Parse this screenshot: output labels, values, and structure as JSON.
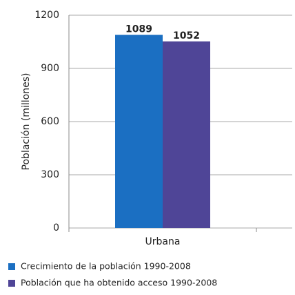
{
  "chart_data": {
    "type": "bar",
    "ylabel": "Población (millones)",
    "categories": [
      "Urbana"
    ],
    "series": [
      {
        "name": "Crecimiento de la población 1990-2008",
        "color": "#1b6fc2",
        "values": [
          1089
        ]
      },
      {
        "name": "Población que ha obtenido acceso 1990-2008",
        "color": "#4f4597",
        "values": [
          1052
        ]
      }
    ],
    "ylim": [
      0,
      1200
    ],
    "yticks": [
      0,
      300,
      600,
      900,
      1200
    ],
    "grid": true
  }
}
